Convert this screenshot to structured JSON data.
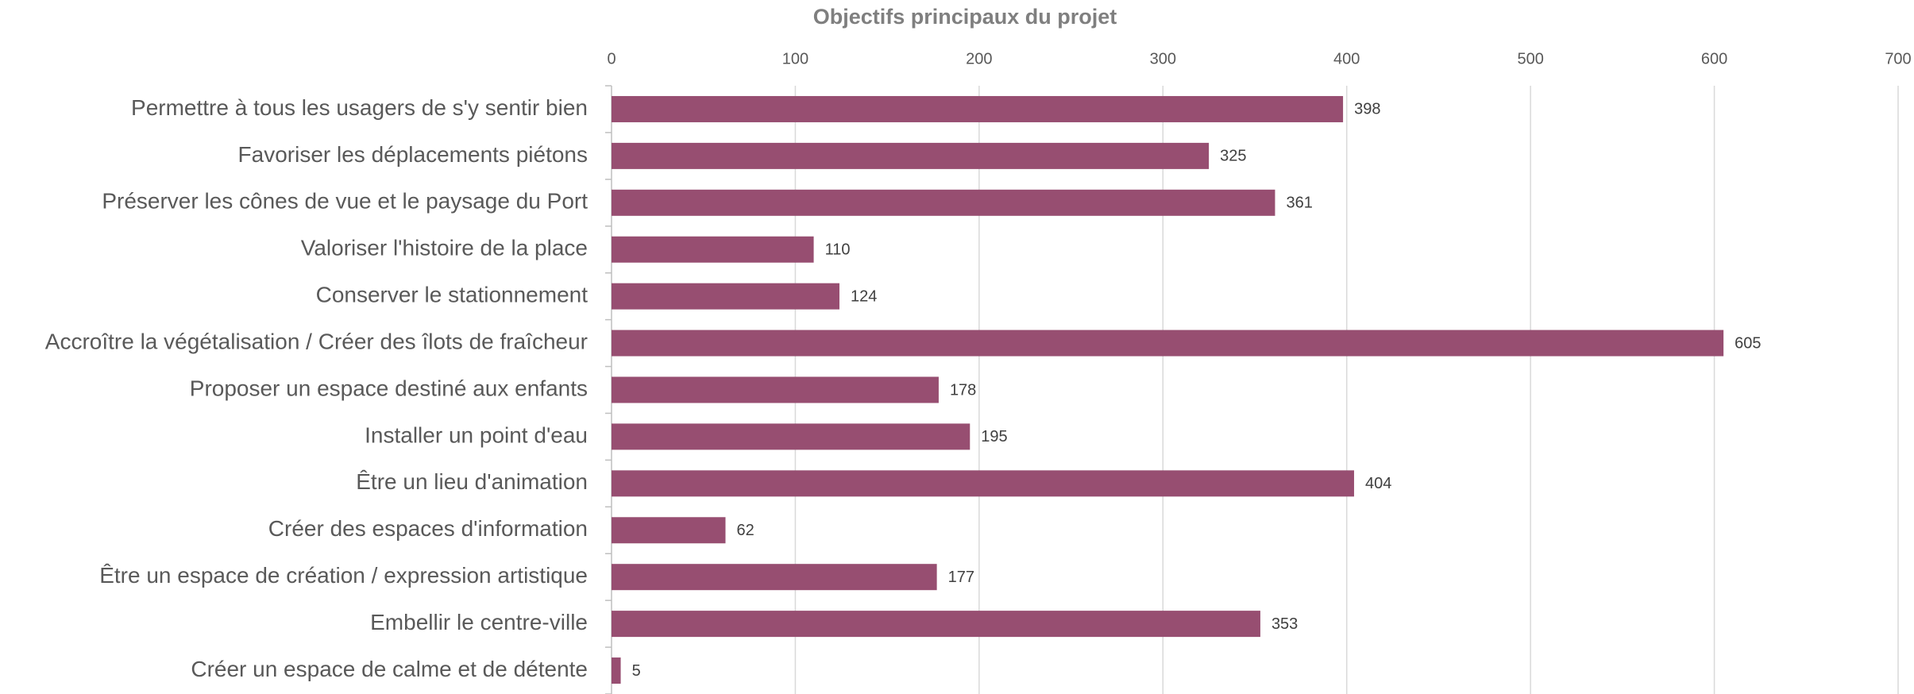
{
  "chart_data": {
    "type": "bar",
    "orientation": "horizontal",
    "title": "Objectifs principaux du projet",
    "categories": [
      "Permettre à tous les usagers de s'y sentir bien",
      "Favoriser les déplacements piétons",
      "Préserver les cônes de vue et le paysage du Port",
      "Valoriser l'histoire de la place",
      "Conserver le stationnement",
      "Accroître la végétalisation / Créer des îlots de fraîcheur",
      "Proposer un espace destiné aux enfants",
      "Installer un point d'eau",
      "Être un lieu d'animation",
      "Créer des espaces d'information",
      "Être un espace de création / expression artistique",
      "Embellir le centre-ville",
      "Créer un espace de calme et de détente"
    ],
    "values": [
      398,
      325,
      361,
      110,
      124,
      605,
      178,
      195,
      404,
      62,
      177,
      353,
      5
    ],
    "color": "#974e71",
    "xlim": [
      0,
      700
    ],
    "xticks": [
      0,
      100,
      200,
      300,
      400,
      500,
      600,
      700
    ],
    "grid": true,
    "data_labels": true
  }
}
